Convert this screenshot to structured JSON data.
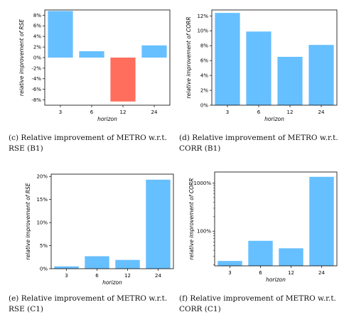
{
  "colors": {
    "positive": "#66bfff",
    "negative": "#ff6e5c"
  },
  "chart_data": [
    {
      "id": "c",
      "type": "bar",
      "categories": [
        "3",
        "6",
        "12",
        "24"
      ],
      "values": [
        8.8,
        1.2,
        -8.3,
        2.3
      ],
      "xlabel": "horizon",
      "ylabel": "relative improvement of RSE",
      "ylim": [
        -9,
        9
      ],
      "yscale": "linear",
      "yticks": [
        -8,
        -6,
        -4,
        -2,
        0,
        2,
        4,
        6,
        8
      ],
      "yticklabels": [
        "-8%",
        "-6%",
        "-4%",
        "-2%",
        "0%",
        "2%",
        "4%",
        "6%",
        "8%"
      ],
      "caption": "(c)  Relative improvement of METRO w.r.t. RSE (B1)"
    },
    {
      "id": "d",
      "type": "bar",
      "categories": [
        "3",
        "6",
        "12",
        "24"
      ],
      "values": [
        12.4,
        9.9,
        6.5,
        8.1
      ],
      "xlabel": "horizon",
      "ylabel": "relative improvement of CORR",
      "ylim": [
        0,
        12.8
      ],
      "yscale": "linear",
      "yticks": [
        0,
        2,
        4,
        6,
        8,
        10,
        12
      ],
      "yticklabels": [
        "0%",
        "2%",
        "4%",
        "6%",
        "8%",
        "10%",
        "12%"
      ],
      "caption": "(d)  Relative improvement of METRO w.r.t. CORR (B1)"
    },
    {
      "id": "e",
      "type": "bar",
      "categories": [
        "3",
        "6",
        "12",
        "24"
      ],
      "values": [
        0.5,
        2.7,
        1.9,
        19.3
      ],
      "xlabel": "horizon",
      "ylabel": "relative improvement of RSE",
      "ylim": [
        0,
        20.5
      ],
      "yscale": "linear",
      "yticks": [
        0,
        5,
        10,
        15,
        20
      ],
      "yticklabels": [
        "0%",
        "5%",
        "10%",
        "15%",
        "20%"
      ],
      "caption": "(e)  Relative improvement of METRO w.r.t. RSE (C1)"
    },
    {
      "id": "f",
      "type": "bar",
      "categories": [
        "3",
        "6",
        "12",
        "24"
      ],
      "values": [
        24,
        63,
        44,
        1350
      ],
      "xlabel": "horizon",
      "ylabel": "relative improvement of CORR",
      "ylim": [
        19,
        1700
      ],
      "yscale": "log",
      "yticks": [
        100,
        1000
      ],
      "yticklabels": [
        "100%",
        "1000%"
      ],
      "caption": "(f)  Relative improvement of METRO w.r.t. CORR (C1)"
    }
  ]
}
